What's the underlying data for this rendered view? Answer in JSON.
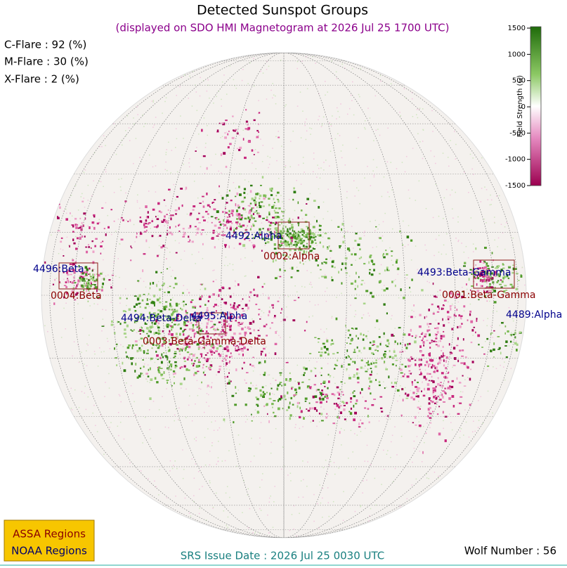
{
  "title": "Detected Sunspot Groups",
  "subtitle": "(displayed on SDO HMI Magnetogram at 2026 Jul 25 1700 UTC)",
  "flare_probabilities": [
    "C-Flare : 92 (%)",
    "M-Flare : 30 (%)",
    "X-Flare :  2 (%)"
  ],
  "colorbar": {
    "label": "Field Strength (G)",
    "range": [
      -1500,
      1500
    ],
    "ticks": [
      1500,
      1000,
      500,
      0,
      -500,
      -1000,
      -1500
    ]
  },
  "assa_regions": [
    "4492:Alpha",
    "4496:Beta",
    "4493:Beta-Gamma",
    "4494:Beta-Delta",
    "4495:Alpha",
    "4489:Alpha"
  ],
  "noaa_regions": [
    "0002:Alpha",
    "0004:Beta",
    "0001:Beta-Gamma",
    "0003:Beta-Gamma-Delta"
  ],
  "legend": [
    "ASSA Regions",
    "NOAA Regions"
  ],
  "issue_date": "SRS Issue Date : 2026 Jul 25 0030 UTC",
  "wolf_number": "Wolf Number : 56"
}
